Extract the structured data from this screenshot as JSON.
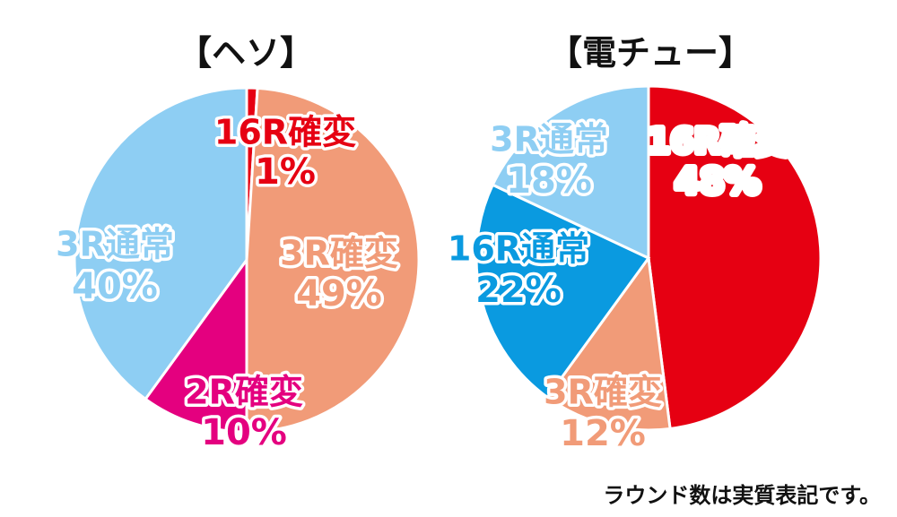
{
  "chart_data": [
    {
      "type": "pie",
      "title": "【ヘソ】",
      "start": "12 o'clock",
      "direction": "clockwise",
      "slices": [
        {
          "label": "16R確変",
          "pct_text": "1%",
          "value": 1,
          "color": "#E60012",
          "text_color": "#E60012"
        },
        {
          "label": "3R確変",
          "pct_text": "49%",
          "value": 49,
          "color": "#F19B78",
          "text_color": "#F19B78"
        },
        {
          "label": "2R確変",
          "pct_text": "10%",
          "value": 10,
          "color": "#E4007F",
          "text_color": "#E4007F"
        },
        {
          "label": "3R通常",
          "pct_text": "40%",
          "value": 40,
          "color": "#8ECEF3",
          "text_color": "#8ECEF3"
        }
      ]
    },
    {
      "type": "pie",
      "title": "【電チュー】",
      "start": "12 o'clock",
      "direction": "clockwise",
      "slices": [
        {
          "label": "16R確変",
          "pct_text": "48%",
          "value": 48,
          "color": "#E60012",
          "text_color": "#ffffff"
        },
        {
          "label": "3R確変",
          "pct_text": "12%",
          "value": 12,
          "color": "#F19B78",
          "text_color": "#F19B78"
        },
        {
          "label": "16R通常",
          "pct_text": "22%",
          "value": 22,
          "color": "#0A9AE0",
          "text_color": "#0A9AE0"
        },
        {
          "label": "3R通常",
          "pct_text": "18%",
          "value": 18,
          "color": "#8ECEF3",
          "text_color": "#8ECEF3"
        }
      ]
    }
  ],
  "footnote": "ラウンド数は実質表記です。"
}
